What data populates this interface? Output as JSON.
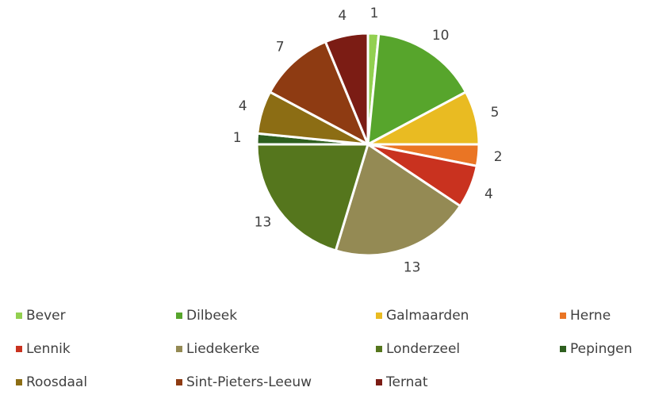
{
  "chart_data": {
    "type": "pie",
    "categories": [
      "Bever",
      "Dilbeek",
      "Galmaarden",
      "Herne",
      "Lennik",
      "Liedekerke",
      "Londerzeel",
      "Pepingen",
      "Roosdaal",
      "Sint-Pieters-Leeuw",
      "Ternat"
    ],
    "values": [
      1,
      10,
      5,
      2,
      4,
      13,
      13,
      1,
      4,
      7,
      4
    ],
    "colors": [
      "#92d050",
      "#57a52c",
      "#e9bb22",
      "#ea7524",
      "#c9321f",
      "#948a54",
      "#55761d",
      "#2e5f1f",
      "#8c6d14",
      "#8e3b12",
      "#7b1c14"
    ],
    "legend": "bottom"
  }
}
